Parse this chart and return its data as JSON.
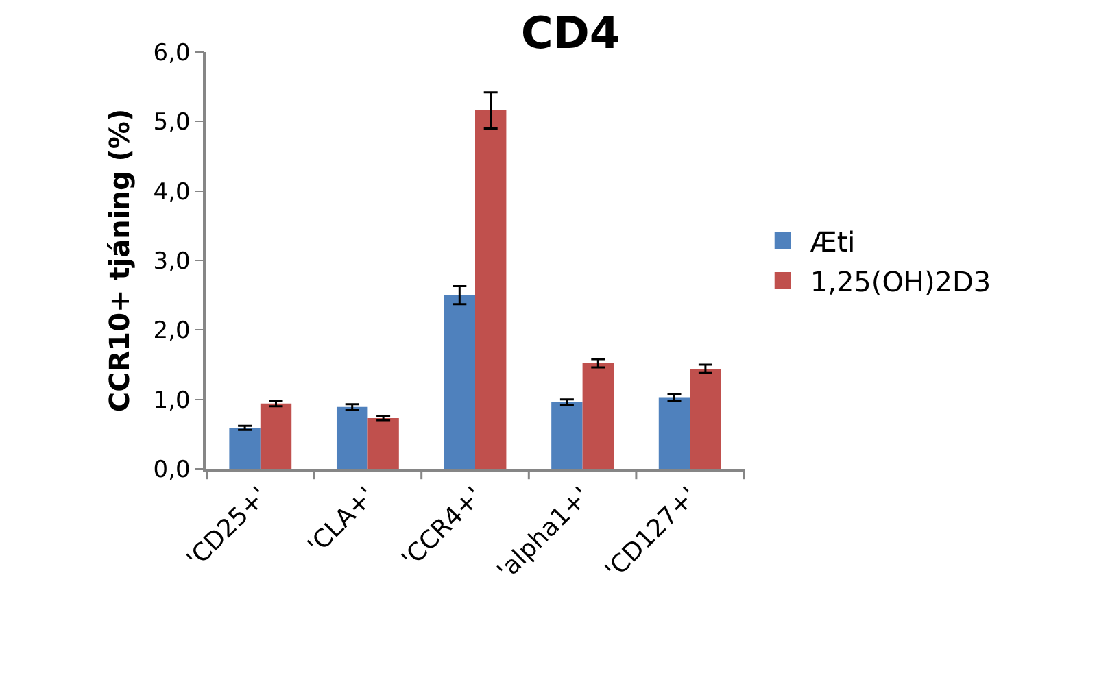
{
  "chart_data": {
    "type": "bar",
    "title": "CD4",
    "ylabel": "CCR10+ tjáning (%)",
    "categories": [
      "'CD25+'",
      "'CLA+'",
      "'CCR4+'",
      "'alpha1+'",
      "'CD127+'"
    ],
    "series": [
      {
        "name": "Æti",
        "color": "#4f81bd",
        "values": [
          0.59,
          0.89,
          2.5,
          0.96,
          1.03
        ],
        "errors": [
          0.03,
          0.04,
          0.13,
          0.04,
          0.05
        ]
      },
      {
        "name": "1,25(OH)2D3",
        "color": "#c0504d",
        "values": [
          0.94,
          0.73,
          5.16,
          1.52,
          1.44
        ],
        "errors": [
          0.04,
          0.03,
          0.26,
          0.06,
          0.06
        ]
      }
    ],
    "ylim": [
      0,
      6
    ],
    "yticks": [
      {
        "value": 0,
        "label": "0,0"
      },
      {
        "value": 1,
        "label": "1,0"
      },
      {
        "value": 2,
        "label": "2,0"
      },
      {
        "value": 3,
        "label": "3,0"
      },
      {
        "value": 4,
        "label": "4,0"
      },
      {
        "value": 5,
        "label": "5,0"
      },
      {
        "value": 6,
        "label": "6,0"
      }
    ],
    "legend": "right"
  }
}
